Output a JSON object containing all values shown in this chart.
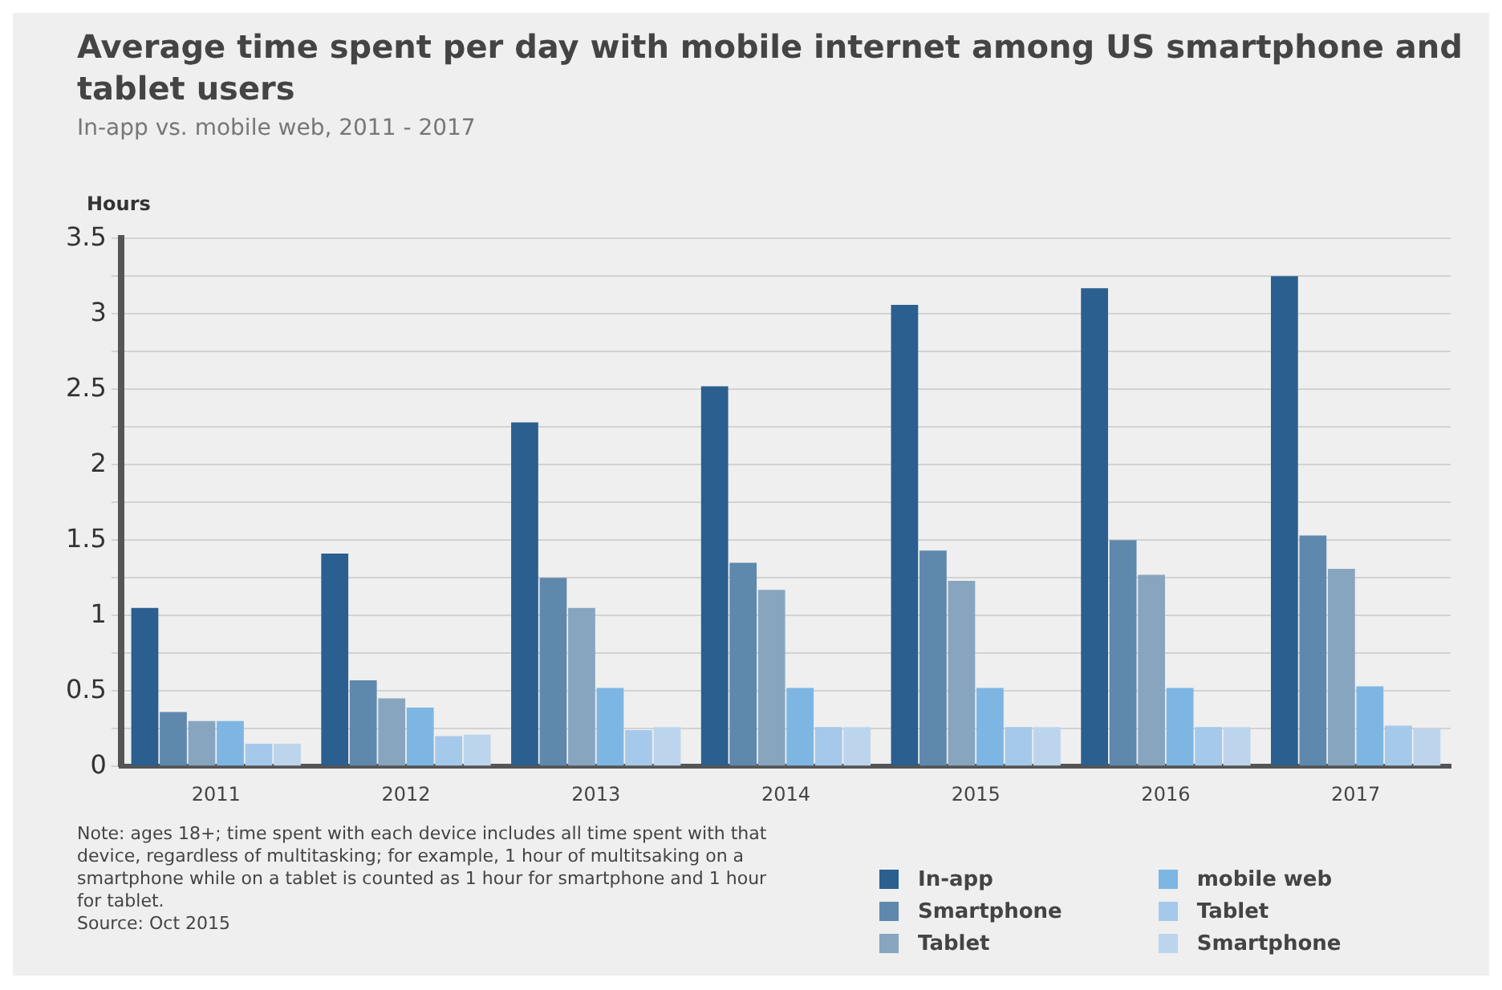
{
  "chart_data": {
    "type": "bar",
    "title": "Average time spent per day with mobile internet among US smartphone and tablet users",
    "subtitle": "In-app vs. mobile web, 2011 - 2017",
    "ylabel": "Hours",
    "categories": [
      "2011",
      "2012",
      "2013",
      "2014",
      "2015",
      "2016",
      "2017"
    ],
    "series": [
      {
        "name": "In-app",
        "color": "#2a5f8f",
        "values": [
          1.05,
          1.41,
          2.28,
          2.52,
          3.06,
          3.17,
          3.25
        ]
      },
      {
        "name": "Smartphone",
        "color": "#5f88ad",
        "values": [
          0.36,
          0.57,
          1.25,
          1.35,
          1.43,
          1.5,
          1.53
        ]
      },
      {
        "name": "Tablet",
        "color": "#88a5c0",
        "values": [
          0.3,
          0.45,
          1.05,
          1.17,
          1.23,
          1.27,
          1.31
        ]
      },
      {
        "name": "mobile web",
        "color": "#7db6e3",
        "values": [
          0.3,
          0.39,
          0.52,
          0.52,
          0.52,
          0.52,
          0.53
        ]
      },
      {
        "name": "Tablet",
        "color": "#a5c9ea",
        "values": [
          0.15,
          0.2,
          0.24,
          0.26,
          0.26,
          0.26,
          0.27
        ]
      },
      {
        "name": "Smartphone",
        "color": "#bcd5ec",
        "values": [
          0.15,
          0.21,
          0.26,
          0.26,
          0.26,
          0.26,
          0.25
        ]
      }
    ],
    "ylim": [
      0,
      3.5
    ],
    "yticks": [
      0,
      {
        "value": 0.25,
        "label": null
      },
      0.5,
      {
        "value": 0.75,
        "label": null
      },
      1,
      {
        "value": 1.25,
        "label": null
      },
      1.5,
      {
        "value": 1.75,
        "label": null
      },
      2,
      {
        "value": 2.25,
        "label": null
      },
      2.5,
      {
        "value": 2.75,
        "label": null
      },
      3,
      {
        "value": 3.25,
        "label": null
      },
      3.5
    ],
    "grid": "y",
    "legend": "bottom right",
    "annotations": [
      "Note: ages 18+; time spent with each device includes all time spent with that device, regardless of multitasking; for example, 1 hour of multitsaking on a smartphone while on a tablet is counted as 1 hour for smartphone and 1 hour for tablet.",
      "Source: Oct 2015"
    ]
  }
}
